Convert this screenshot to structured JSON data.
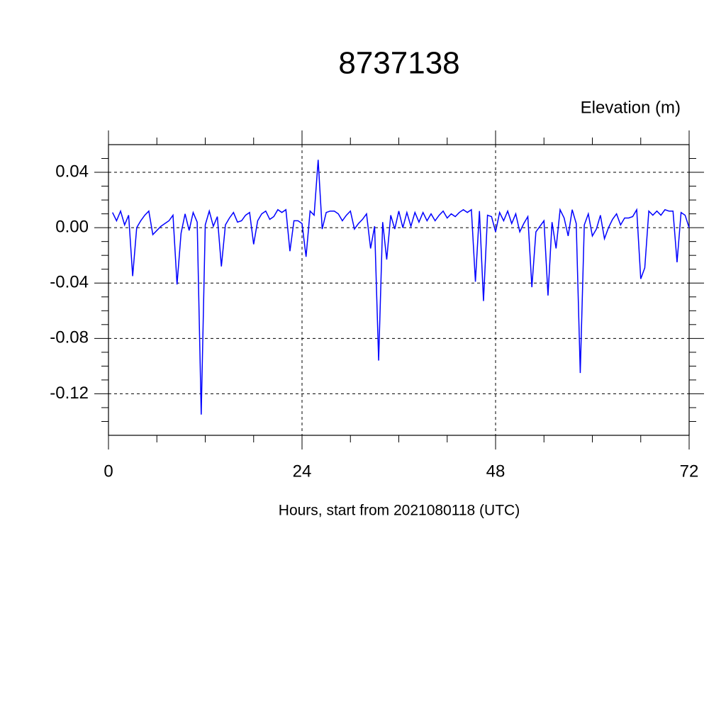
{
  "chart_data": {
    "type": "line",
    "title": "8737138",
    "ylabel": "Elevation (m)",
    "xlabel": "Hours, start from 2021080118 (UTC)",
    "xlim": [
      0,
      72
    ],
    "ylim": [
      -0.15,
      0.06
    ],
    "xticks": [
      0,
      24,
      48,
      72
    ],
    "yticks": [
      0.04,
      {
        "value": 0,
        "label": "0.00"
      },
      -0.04,
      -0.08,
      -0.12
    ],
    "xminorticks": [
      6,
      12,
      18,
      30,
      36,
      42,
      54,
      60,
      66
    ],
    "yminorticks": [
      0.05,
      0.03,
      0.02,
      0.01,
      -0.01,
      -0.02,
      -0.03,
      -0.05,
      -0.06,
      -0.07,
      -0.09,
      -0.1,
      -0.11,
      -0.13,
      -0.14
    ],
    "grid": true,
    "x": [
      0.5,
      1,
      1.5,
      2,
      2.5,
      3,
      3.5,
      4,
      4.5,
      5,
      5.5,
      6,
      6.5,
      7,
      7.5,
      8,
      8.5,
      9,
      9.5,
      10,
      10.5,
      11,
      11.5,
      12,
      12.5,
      13,
      13.5,
      14,
      14.5,
      15,
      15.5,
      16,
      16.5,
      17,
      17.5,
      18,
      18.5,
      19,
      19.5,
      20,
      20.5,
      21,
      21.5,
      22,
      22.5,
      23,
      23.5,
      24,
      24.5,
      25,
      25.5,
      26,
      26.5,
      27,
      27.5,
      28,
      28.5,
      29,
      29.5,
      30,
      30.5,
      31,
      31.5,
      32,
      32.5,
      33,
      33.5,
      34,
      34.5,
      35,
      35.5,
      36,
      36.5,
      37,
      37.5,
      38,
      38.5,
      39,
      39.5,
      40,
      40.5,
      41,
      41.5,
      42,
      42.5,
      43,
      43.5,
      44,
      44.5,
      45,
      45.5,
      46,
      46.5,
      47,
      47.5,
      48,
      48.5,
      49,
      49.5,
      50,
      50.5,
      51,
      51.5,
      52,
      52.5,
      53,
      53.5,
      54,
      54.5,
      55,
      55.5,
      56,
      56.5,
      57,
      57.5,
      58,
      58.5,
      59,
      59.5,
      60,
      60.5,
      61,
      61.5,
      62,
      62.5,
      63,
      63.5,
      64,
      64.5,
      65,
      65.5,
      66,
      66.5,
      67,
      67.5,
      68,
      68.5,
      69,
      69.5,
      70,
      70.5,
      71,
      71.5,
      72
    ],
    "series": [
      {
        "color": "#0000ff",
        "values": [
          0.011,
          0.005,
          0.012,
          0.002,
          0.009,
          -0.035,
          0,
          0.005,
          0.009,
          0.012,
          -0.005,
          -0.002,
          0.001,
          0.003,
          0.005,
          0.009,
          -0.041,
          -0.004,
          0.01,
          -0.002,
          0.011,
          0.004,
          -0.135,
          0.002,
          0.012,
          0.001,
          0.008,
          -0.028,
          0.002,
          0.007,
          0.011,
          0.004,
          0.005,
          0.009,
          0.011,
          -0.012,
          0.005,
          0.01,
          0.012,
          0.006,
          0.008,
          0.013,
          0.011,
          0.013,
          -0.017,
          0.005,
          0.005,
          0.003,
          -0.021,
          0.012,
          0.009,
          0.049,
          -0.001,
          0.011,
          0.012,
          0.012,
          0.01,
          0.005,
          0.009,
          0.012,
          -0.001,
          0.003,
          0.006,
          0.01,
          -0.015,
          0.001,
          -0.096,
          0.004,
          -0.023,
          0.009,
          -0.001,
          0.012,
          0,
          0.011,
          0.001,
          0.011,
          0.004,
          0.011,
          0.005,
          0.01,
          0.005,
          0.009,
          0.012,
          0.007,
          0.01,
          0.008,
          0.011,
          0.013,
          0.011,
          0.013,
          -0.039,
          0.012,
          -0.053,
          0.009,
          0.008,
          -0.003,
          0.011,
          0.005,
          0.012,
          0.003,
          0.01,
          -0.003,
          0.003,
          0.008,
          -0.043,
          -0.003,
          0.001,
          0.005,
          -0.049,
          0.004,
          -0.015,
          0.013,
          0.007,
          -0.006,
          0.013,
          0.003,
          -0.105,
          0.002,
          0.01,
          -0.006,
          -0.001,
          0.009,
          -0.008,
          0,
          0.006,
          0.01,
          0.002,
          0.007,
          0.007,
          0.008,
          0.013,
          -0.037,
          -0.029,
          0.012,
          0.009,
          0.012,
          0.009,
          0.013,
          0.012,
          0.012,
          -0.025,
          0.011,
          0.009,
          0
        ]
      }
    ]
  }
}
